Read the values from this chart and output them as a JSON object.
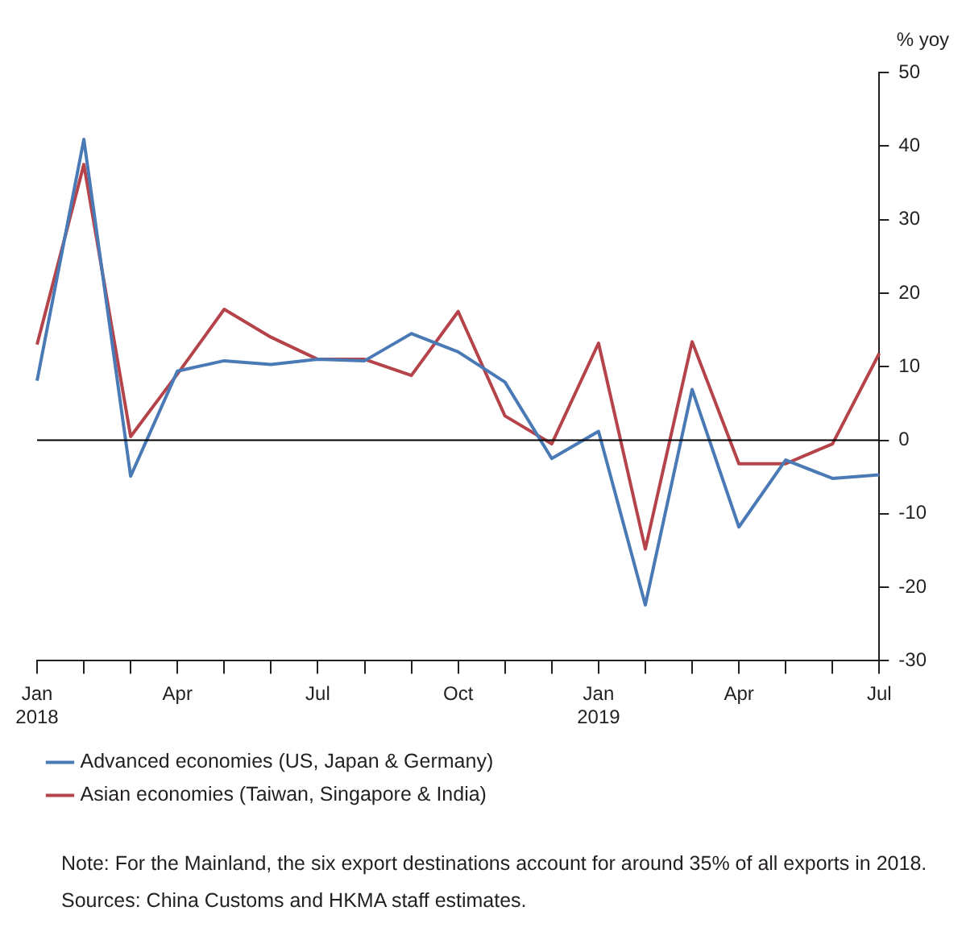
{
  "chart_data": {
    "type": "line",
    "ylabel": "% yoy",
    "categories": [
      "Jan 2018",
      null,
      null,
      "Apr",
      null,
      null,
      "Jul",
      null,
      null,
      "Oct",
      null,
      null,
      "Jan 2019",
      null,
      null,
      "Apr",
      null,
      null,
      "Jul"
    ],
    "series": [
      {
        "name": "Advanced economies (US, Japan & Germany)",
        "color": "#4a7ab5",
        "values": [
          8.1,
          40.9,
          -4.9,
          9.4,
          10.8,
          10.3,
          11,
          10.8,
          14.5,
          12,
          7.9,
          -2.5,
          1.2,
          -22.4,
          6.9,
          -11.8,
          -2.7,
          -5.2,
          -4.7
        ]
      },
      {
        "name": "Asian economies (Taiwan, Singapore & India)",
        "color": "#b5434a",
        "values": [
          13,
          37.5,
          0.5,
          9,
          17.8,
          14,
          11,
          11,
          8.8,
          17.5,
          3.3,
          -0.5,
          13.2,
          -14.8,
          13.4,
          -3.2,
          -3.2,
          -0.5,
          11.8
        ]
      }
    ],
    "ylim": [
      -30,
      50
    ],
    "yticks": [
      -30,
      -20,
      -10,
      0,
      10,
      20,
      30,
      40,
      50
    ],
    "ref_lines": [
      {
        "axis": "y",
        "value": 0,
        "color": "#000000"
      }
    ],
    "grid": false,
    "legend": "bottom",
    "marker": "none",
    "line_style": "solid",
    "annotations": [
      "Note: For the Mainland, the six export destinations account for around 35% of all exports in 2018.",
      "Sources: China Customs and HKMA staff estimates."
    ]
  }
}
